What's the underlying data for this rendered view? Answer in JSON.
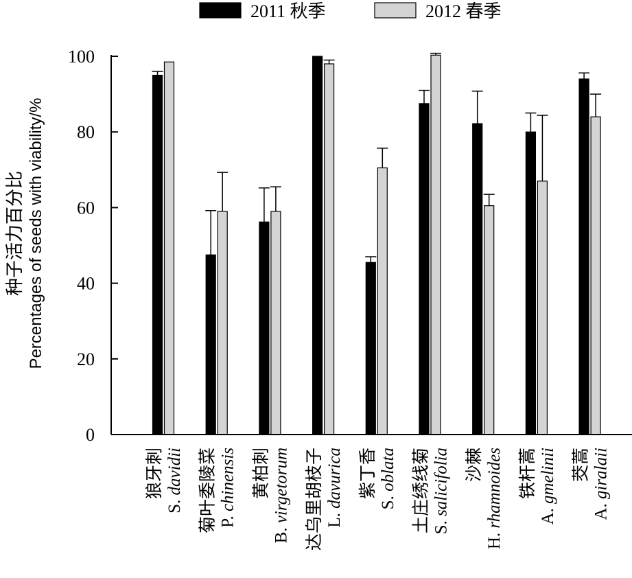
{
  "chart_data": {
    "type": "bar",
    "categories": [
      {
        "cn": "狼牙刺",
        "latin_prefix": "S. ",
        "latin_italic": "davidii"
      },
      {
        "cn": "菊叶委陵菜",
        "latin_prefix": "P. ",
        "latin_italic": "chinensis"
      },
      {
        "cn": "黄柏刺",
        "latin_prefix": "B. ",
        "latin_italic": "virgetorum"
      },
      {
        "cn": "达乌里胡枝子",
        "latin_prefix": "L. ",
        "latin_italic": "davurica"
      },
      {
        "cn": "紫丁香",
        "latin_prefix": "S. ",
        "latin_italic": "oblata"
      },
      {
        "cn": "土庄绣线菊",
        "latin_prefix": "S. ",
        "latin_italic": "salicifolia"
      },
      {
        "cn": "沙棘",
        "latin_prefix": "H. ",
        "latin_italic": "rhamnoides"
      },
      {
        "cn": "铁杆蒿",
        "latin_prefix": "A. ",
        "latin_italic": "gmelinii"
      },
      {
        "cn": "茭蒿",
        "latin_prefix": "A. ",
        "latin_italic": "giralaii"
      }
    ],
    "series": [
      {
        "name": "2011 秋季",
        "color": "#000000",
        "values": [
          95,
          47.5,
          56.2,
          100,
          45.5,
          87.5,
          82.2,
          80,
          94
        ],
        "errors": [
          1,
          11.7,
          9,
          0,
          1.5,
          3.5,
          8.6,
          5,
          1.6
        ]
      },
      {
        "name": "2012 春季",
        "color": "#d4d4d4",
        "values": [
          98.5,
          59,
          59,
          98,
          70.5,
          100.3,
          60.5,
          67,
          84
        ],
        "errors": [
          0,
          10.3,
          6.5,
          1,
          5.2,
          0.5,
          3,
          17.4,
          6
        ]
      }
    ],
    "ylabel_cn": "种子活力百分比",
    "ylabel_en": "Percentages of seeds with viability/%",
    "yticks": [
      0,
      20,
      40,
      60,
      80,
      100
    ],
    "ylim": [
      0,
      100
    ],
    "legend_position": "top",
    "grid": false
  }
}
